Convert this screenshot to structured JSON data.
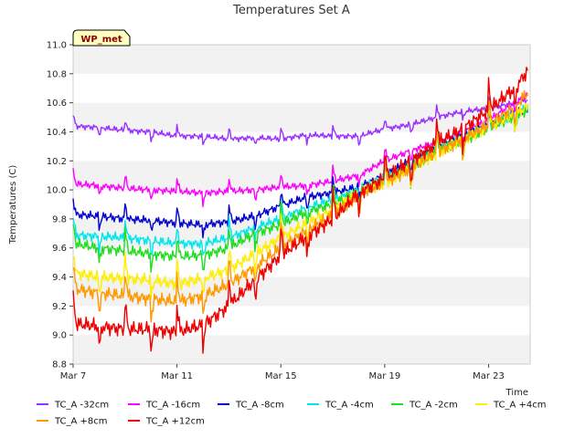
{
  "chart_data": {
    "type": "line",
    "title": "Temperatures Set A",
    "xlabel": "Time",
    "ylabel": "Temperatures (C)",
    "badge": "WP_met",
    "xlim": [
      7,
      24.6
    ],
    "ylim": [
      8.8,
      11.0
    ],
    "x_ticks": [
      {
        "value": 7,
        "label": "Mar 7"
      },
      {
        "value": 11,
        "label": "Mar 11"
      },
      {
        "value": 15,
        "label": "Mar 15"
      },
      {
        "value": 19,
        "label": "Mar 19"
      },
      {
        "value": 23,
        "label": "Mar 23"
      }
    ],
    "y_ticks": [
      8.8,
      9.0,
      9.2,
      9.4,
      9.6,
      9.8,
      10.0,
      10.2,
      10.4,
      10.6,
      10.8,
      11.0
    ],
    "y_tick_labels": [
      "8.8",
      "9.0",
      "9.2",
      "9.4",
      "9.6",
      "9.8",
      "10.0",
      "10.2",
      "10.4",
      "10.6",
      "10.8",
      "11.0"
    ],
    "grid_bands": true,
    "legend_position": "bottom",
    "x": [
      7,
      8,
      9,
      10,
      11,
      12,
      13,
      14,
      15,
      16,
      17,
      18,
      19,
      20,
      21,
      22,
      23,
      24,
      24.5
    ],
    "series": [
      {
        "name": "TC_A -32cm",
        "color": "#9b30ff",
        "values": [
          10.44,
          10.43,
          10.41,
          10.4,
          10.37,
          10.37,
          10.35,
          10.36,
          10.35,
          10.38,
          10.37,
          10.37,
          10.42,
          10.45,
          10.5,
          10.54,
          10.56,
          10.6,
          10.62
        ]
      },
      {
        "name": "TC_A -16cm",
        "color": "#ff00ff",
        "values": [
          10.04,
          10.03,
          10.01,
          10.0,
          9.99,
          9.98,
          9.99,
          10.0,
          10.02,
          10.03,
          10.06,
          10.1,
          10.2,
          10.27,
          10.33,
          10.4,
          10.48,
          10.6,
          10.65
        ]
      },
      {
        "name": "TC_A -8cm",
        "color": "#0000cc",
        "values": [
          9.83,
          9.82,
          9.8,
          9.79,
          9.77,
          9.76,
          9.78,
          9.82,
          9.89,
          9.95,
          9.98,
          10.02,
          10.1,
          10.2,
          10.3,
          10.38,
          10.45,
          10.53,
          10.56
        ]
      },
      {
        "name": "TC_A -4cm",
        "color": "#00e5ee",
        "values": [
          9.69,
          9.68,
          9.67,
          9.65,
          9.63,
          9.63,
          9.67,
          9.74,
          9.8,
          9.88,
          9.93,
          10.0,
          10.08,
          10.18,
          10.28,
          10.36,
          10.44,
          10.52,
          10.56
        ]
      },
      {
        "name": "TC_A -2cm",
        "color": "#22dd22",
        "values": [
          9.63,
          9.6,
          9.58,
          9.56,
          9.54,
          9.55,
          9.6,
          9.7,
          9.76,
          9.85,
          9.9,
          9.99,
          10.06,
          10.16,
          10.26,
          10.34,
          10.42,
          10.51,
          10.55
        ]
      },
      {
        "name": "TC_A +4cm",
        "color": "#ffee00",
        "values": [
          9.43,
          9.4,
          9.39,
          9.38,
          9.35,
          9.39,
          9.45,
          9.56,
          9.67,
          9.77,
          9.86,
          9.98,
          10.05,
          10.15,
          10.25,
          10.34,
          10.43,
          10.52,
          10.57
        ]
      },
      {
        "name": "TC_A +8cm",
        "color": "#ff9900",
        "values": [
          9.32,
          9.29,
          9.27,
          9.25,
          9.23,
          9.27,
          9.35,
          9.47,
          9.6,
          9.72,
          9.82,
          9.97,
          10.05,
          10.15,
          10.26,
          10.35,
          10.45,
          10.57,
          10.67
        ]
      },
      {
        "name": "TC_A +12cm",
        "color": "#ee0000",
        "values": [
          9.08,
          9.06,
          9.04,
          9.04,
          9.02,
          9.07,
          9.2,
          9.38,
          9.55,
          9.68,
          9.8,
          9.98,
          10.08,
          10.2,
          10.32,
          10.42,
          10.55,
          10.7,
          10.82
        ]
      }
    ]
  }
}
